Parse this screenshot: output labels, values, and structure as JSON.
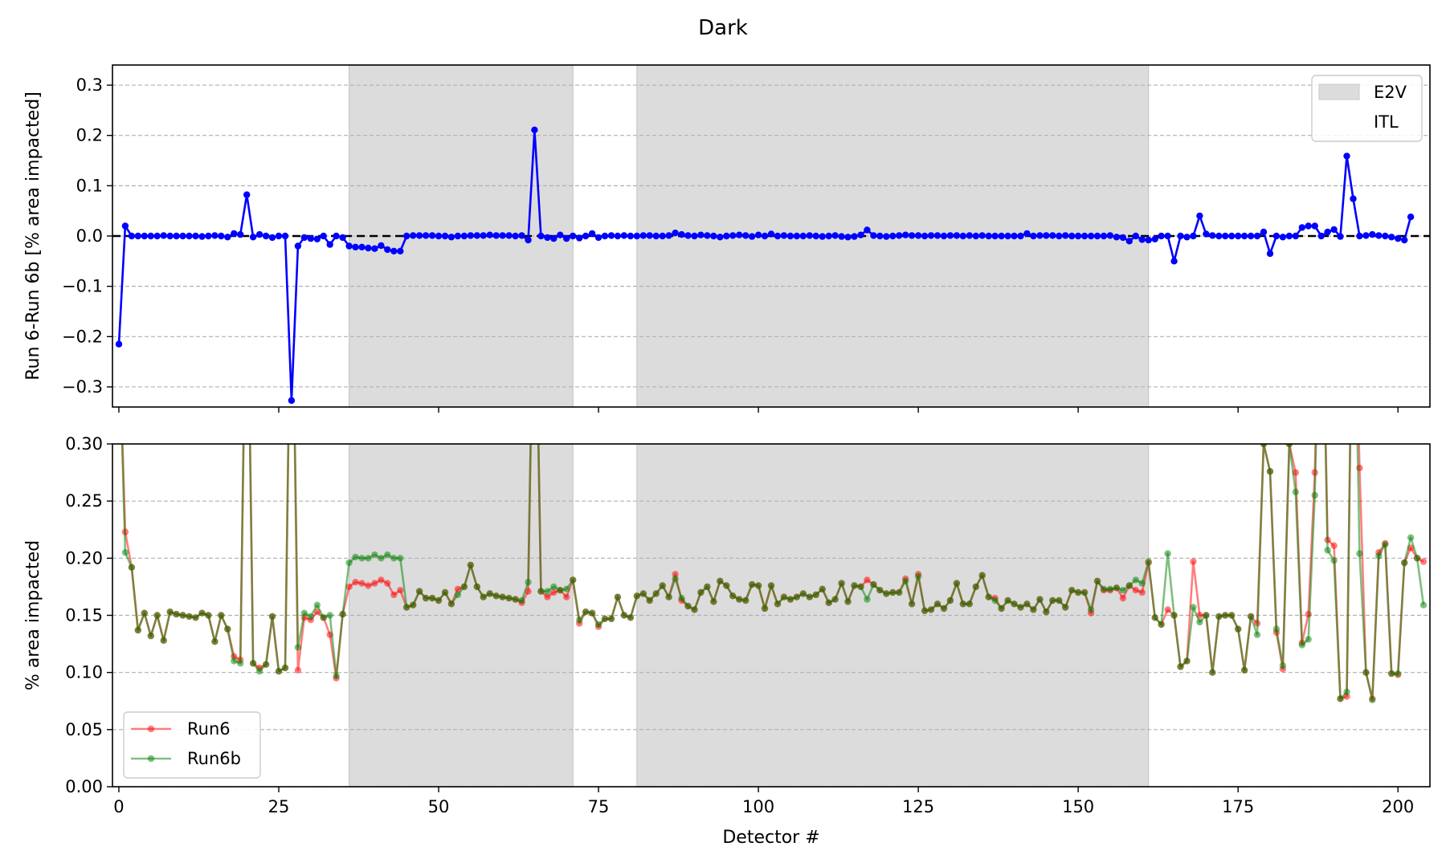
{
  "figure": {
    "title": "Dark",
    "xlabel": "Detector #",
    "colors": {
      "diff_line": "#0000ff",
      "run6": "#ff0000",
      "run6b": "#008000",
      "shade": "#dcdcdc",
      "grid": "#b0b0b0",
      "zero_line": "#000000"
    }
  },
  "chart_data": [
    {
      "type": "line",
      "title": "",
      "xlabel": "",
      "ylabel": "Run 6-Run 6b [% area impacted]",
      "xlim": [
        -1,
        205
      ],
      "ylim": [
        -0.34,
        0.34
      ],
      "xticks": [
        0,
        25,
        50,
        75,
        100,
        125,
        150,
        175,
        200
      ],
      "xtick_labels_shown": false,
      "yticks": [
        -0.3,
        -0.2,
        -0.1,
        0.0,
        0.1,
        0.2,
        0.3
      ],
      "ytick_labels": [
        "−0.3",
        "−0.2",
        "−0.1",
        "0.0",
        "0.1",
        "0.2",
        "0.3"
      ],
      "grid": "horizontal dashed",
      "reference_line_y": 0,
      "shaded_regions": [
        {
          "x_start": 36,
          "x_end": 71,
          "label": "E2V"
        },
        {
          "x_start": 81,
          "x_end": 161,
          "label": "E2V"
        }
      ],
      "legend": {
        "position": "top-right",
        "entries": [
          "E2V",
          "ITL"
        ]
      },
      "series": [
        {
          "name": "",
          "values": [
            -0.215,
            0.02,
            0.0,
            0.0,
            0.0,
            0.0,
            0.0,
            0.001,
            0.0,
            0.0,
            0.0,
            0.0,
            0.0,
            -0.001,
            0.0,
            0.001,
            0.0,
            -0.002,
            0.005,
            0.003,
            0.082,
            -0.002,
            0.003,
            0.0,
            -0.003,
            0.0,
            0.0,
            -0.327,
            -0.02,
            -0.003,
            -0.005,
            -0.006,
            0.0,
            -0.017,
            0.0,
            -0.003,
            -0.02,
            -0.022,
            -0.022,
            -0.024,
            -0.025,
            -0.019,
            -0.027,
            -0.03,
            -0.03,
            0.0,
            0.001,
            0.001,
            0.001,
            0.001,
            0.0,
            0.0,
            -0.002,
            0.0,
            0.0,
            0.001,
            0.001,
            0.001,
            0.002,
            0.001,
            0.001,
            0.001,
            0.0,
            0.001,
            -0.008,
            0.211,
            0.0,
            -0.003,
            -0.005,
            0.002,
            -0.005,
            0.0,
            -0.004,
            0.0,
            0.005,
            -0.003,
            0.0,
            0.001,
            0.0,
            0.001,
            0.0,
            0.0,
            0.001,
            0.001,
            0.0,
            0.0,
            0.001,
            0.006,
            0.003,
            0.001,
            0.0,
            0.002,
            0.001,
            0.0,
            -0.002,
            0.0,
            0.001,
            0.002,
            0.001,
            -0.001,
            0.002,
            0.0,
            0.004,
            0.0,
            0.001,
            0.0,
            0.0,
            0.0,
            0.001,
            0.0,
            -0.001,
            0.0,
            0.001,
            -0.001,
            -0.002,
            -0.001,
            0.002,
            0.012,
            0.001,
            0.0,
            -0.001,
            0.0,
            0.001,
            0.002,
            0.001,
            0.001,
            0.0,
            0.001,
            0.001,
            0.0,
            0.001,
            0.001,
            0.0,
            0.001,
            0.0,
            0.001,
            0.0,
            0.0,
            0.0,
            0.0,
            0.0,
            0.0,
            0.005,
            0.0,
            0.001,
            0.001,
            0.001,
            0.0,
            0.001,
            0.0,
            0.0,
            0.0,
            0.0,
            0.0,
            0.0,
            0.001,
            -0.002,
            -0.003,
            -0.01,
            0.0,
            -0.007,
            -0.008,
            -0.006,
            0.0,
            0.0,
            -0.05,
            0.0,
            -0.002,
            0.0,
            0.04,
            0.004,
            0.001,
            0.0,
            0.0,
            0.0,
            0.0,
            0.0,
            0.0,
            0.0,
            0.008,
            -0.035,
            0.0,
            -0.002,
            0.0,
            0.0,
            0.017,
            0.02,
            0.02,
            0.0,
            0.008,
            0.013,
            -0.001,
            0.159,
            0.074,
            0.0,
            0.001,
            0.003,
            0.001,
            0.0,
            -0.002,
            -0.005,
            -0.008,
            0.038
          ]
        }
      ]
    },
    {
      "type": "line",
      "title": "",
      "xlabel": "Detector #",
      "ylabel": "% area impacted",
      "xlim": [
        -1,
        205
      ],
      "ylim": [
        0.0,
        0.3
      ],
      "xticks": [
        0,
        25,
        50,
        75,
        100,
        125,
        150,
        175,
        200
      ],
      "xtick_labels": [
        "0",
        "25",
        "50",
        "75",
        "100",
        "125",
        "150",
        "175",
        "200"
      ],
      "yticks": [
        0.0,
        0.05,
        0.1,
        0.15,
        0.2,
        0.25,
        0.3
      ],
      "ytick_labels": [
        "0.00",
        "0.05",
        "0.10",
        "0.15",
        "0.20",
        "0.25",
        "0.30"
      ],
      "grid": "horizontal dashed",
      "shaded_regions": [
        {
          "x_start": 36,
          "x_end": 71
        },
        {
          "x_start": 81,
          "x_end": 161
        }
      ],
      "legend": {
        "position": "bottom-left",
        "entries": [
          "Run6",
          "Run6b"
        ]
      },
      "series": [
        {
          "name": "Run6",
          "values": [
            0.4,
            0.223,
            0.192,
            0.137,
            0.152,
            0.132,
            0.15,
            0.128,
            0.153,
            0.151,
            0.15,
            0.149,
            0.148,
            0.152,
            0.15,
            0.127,
            0.15,
            0.138,
            0.114,
            0.111,
            0.5,
            0.108,
            0.104,
            0.107,
            0.149,
            0.101,
            0.104,
            0.5,
            0.102,
            0.148,
            0.146,
            0.153,
            0.148,
            0.133,
            0.095,
            0.151,
            0.175,
            0.179,
            0.178,
            0.176,
            0.178,
            0.181,
            0.178,
            0.168,
            0.172,
            0.157,
            0.159,
            0.171,
            0.165,
            0.165,
            0.163,
            0.17,
            0.16,
            0.173,
            0.175,
            0.194,
            0.175,
            0.166,
            0.169,
            0.167,
            0.166,
            0.165,
            0.164,
            0.161,
            0.171,
            0.5,
            0.171,
            0.166,
            0.17,
            0.172,
            0.166,
            0.181,
            0.143,
            0.153,
            0.152,
            0.14,
            0.147,
            0.147,
            0.166,
            0.15,
            0.148,
            0.167,
            0.169,
            0.163,
            0.169,
            0.176,
            0.166,
            0.186,
            0.163,
            0.158,
            0.155,
            0.17,
            0.175,
            0.162,
            0.18,
            0.176,
            0.167,
            0.164,
            0.163,
            0.177,
            0.176,
            0.156,
            0.176,
            0.16,
            0.166,
            0.164,
            0.166,
            0.169,
            0.166,
            0.168,
            0.173,
            0.161,
            0.164,
            0.178,
            0.162,
            0.176,
            0.175,
            0.181,
            0.177,
            0.172,
            0.169,
            0.17,
            0.17,
            0.182,
            0.16,
            0.186,
            0.154,
            0.155,
            0.16,
            0.156,
            0.163,
            0.178,
            0.16,
            0.16,
            0.175,
            0.185,
            0.166,
            0.165,
            0.156,
            0.163,
            0.16,
            0.157,
            0.16,
            0.155,
            0.164,
            0.153,
            0.163,
            0.163,
            0.157,
            0.172,
            0.17,
            0.17,
            0.152,
            0.18,
            0.172,
            0.172,
            0.174,
            0.165,
            0.176,
            0.172,
            0.17,
            0.196,
            0.148,
            0.142,
            0.155,
            0.15,
            0.105,
            0.11,
            0.197,
            0.15,
            0.15,
            0.1,
            0.149,
            0.15,
            0.15,
            0.138,
            0.102,
            0.149,
            0.143,
            0.3,
            0.276,
            0.135,
            0.103,
            0.3,
            0.275,
            0.126,
            0.151,
            0.275,
            0.5,
            0.216,
            0.211,
            0.077,
            0.079,
            0.5,
            0.279,
            0.1,
            0.077,
            0.205,
            0.213,
            0.099,
            0.098,
            0.196,
            0.209,
            0.2,
            0.197
          ]
        },
        {
          "name": "Run6b",
          "values": [
            0.4,
            0.205,
            0.192,
            0.137,
            0.152,
            0.132,
            0.15,
            0.128,
            0.153,
            0.151,
            0.15,
            0.149,
            0.148,
            0.152,
            0.15,
            0.127,
            0.15,
            0.138,
            0.11,
            0.108,
            0.5,
            0.108,
            0.101,
            0.107,
            0.149,
            0.101,
            0.104,
            0.5,
            0.122,
            0.152,
            0.149,
            0.159,
            0.148,
            0.15,
            0.097,
            0.151,
            0.196,
            0.201,
            0.2,
            0.2,
            0.203,
            0.2,
            0.203,
            0.2,
            0.2,
            0.157,
            0.159,
            0.171,
            0.165,
            0.165,
            0.163,
            0.17,
            0.16,
            0.168,
            0.175,
            0.194,
            0.175,
            0.166,
            0.169,
            0.167,
            0.166,
            0.165,
            0.164,
            0.163,
            0.179,
            0.5,
            0.171,
            0.171,
            0.175,
            0.172,
            0.173,
            0.181,
            0.146,
            0.153,
            0.152,
            0.142,
            0.147,
            0.147,
            0.166,
            0.15,
            0.148,
            0.167,
            0.169,
            0.163,
            0.169,
            0.176,
            0.166,
            0.182,
            0.165,
            0.158,
            0.155,
            0.17,
            0.175,
            0.162,
            0.18,
            0.176,
            0.167,
            0.164,
            0.163,
            0.177,
            0.176,
            0.156,
            0.176,
            0.16,
            0.166,
            0.164,
            0.166,
            0.169,
            0.166,
            0.168,
            0.173,
            0.161,
            0.164,
            0.178,
            0.162,
            0.176,
            0.175,
            0.164,
            0.177,
            0.172,
            0.169,
            0.17,
            0.17,
            0.18,
            0.16,
            0.184,
            0.154,
            0.155,
            0.16,
            0.156,
            0.163,
            0.178,
            0.16,
            0.16,
            0.175,
            0.185,
            0.166,
            0.163,
            0.156,
            0.163,
            0.16,
            0.157,
            0.16,
            0.155,
            0.164,
            0.153,
            0.163,
            0.163,
            0.157,
            0.172,
            0.17,
            0.17,
            0.155,
            0.18,
            0.173,
            0.173,
            0.174,
            0.172,
            0.176,
            0.181,
            0.178,
            0.197,
            0.148,
            0.142,
            0.204,
            0.15,
            0.105,
            0.11,
            0.157,
            0.144,
            0.15,
            0.1,
            0.149,
            0.15,
            0.15,
            0.138,
            0.102,
            0.149,
            0.133,
            0.3,
            0.276,
            0.138,
            0.106,
            0.3,
            0.258,
            0.124,
            0.129,
            0.255,
            0.5,
            0.207,
            0.198,
            0.077,
            0.083,
            0.5,
            0.204,
            0.1,
            0.076,
            0.202,
            0.212,
            0.099,
            0.099,
            0.196,
            0.218,
            0.2,
            0.159
          ]
        }
      ]
    }
  ]
}
